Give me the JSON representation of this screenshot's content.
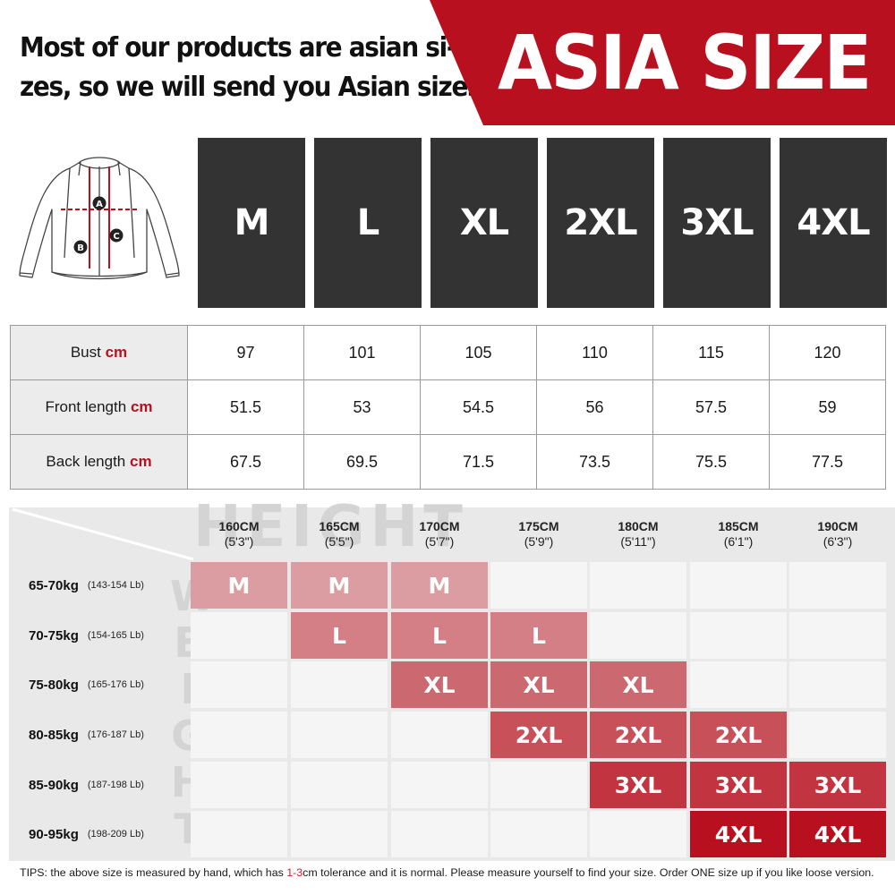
{
  "header": {
    "intro_lines": [
      "Most of our products are asian si-",
      "zes, so we will send you Asian sizes"
    ],
    "banner_title": "ASIA SIZE",
    "banner_color": "#b8101e"
  },
  "diagram": {
    "icon": "jersey-measurement-diagram",
    "markers": [
      "A",
      "B",
      "C"
    ]
  },
  "sizes": [
    "M",
    "L",
    "XL",
    "2XL",
    "3XL",
    "4XL"
  ],
  "measurements": {
    "unit": "cm",
    "rows": [
      {
        "label": "Bust",
        "values": [
          "97",
          "101",
          "105",
          "110",
          "115",
          "120"
        ]
      },
      {
        "label": "Front length",
        "values": [
          "51.5",
          "53",
          "54.5",
          "56",
          "57.5",
          "59"
        ]
      },
      {
        "label": "Back length",
        "values": [
          "67.5",
          "69.5",
          "71.5",
          "73.5",
          "75.5",
          "77.5"
        ]
      }
    ]
  },
  "fit_chart": {
    "watermark_height": "HEIGHT",
    "watermark_weight": "WEIGHT",
    "heights": [
      {
        "cm": "160CM",
        "ft": "(5'3\")"
      },
      {
        "cm": "165CM",
        "ft": "(5'5\")"
      },
      {
        "cm": "170CM",
        "ft": "(5'7\")"
      },
      {
        "cm": "175CM",
        "ft": "(5'9\")"
      },
      {
        "cm": "180CM",
        "ft": "(5'11\")"
      },
      {
        "cm": "185CM",
        "ft": "(6'1\")"
      },
      {
        "cm": "190CM",
        "ft": "(6'3\")"
      }
    ],
    "weights": [
      {
        "kg": "65-70kg",
        "lb": "(143-154 Lb)"
      },
      {
        "kg": "70-75kg",
        "lb": "(154-165 Lb)"
      },
      {
        "kg": "75-80kg",
        "lb": "(165-176 Lb)"
      },
      {
        "kg": "80-85kg",
        "lb": "(176-187 Lb)"
      },
      {
        "kg": "85-90kg",
        "lb": "(187-198 Lb)"
      },
      {
        "kg": "90-95kg",
        "lb": "(198-209 Lb)"
      }
    ],
    "grid": [
      [
        "M",
        "M",
        "M",
        "",
        "",
        "",
        ""
      ],
      [
        "",
        "L",
        "L",
        "L",
        "",
        "",
        ""
      ],
      [
        "",
        "",
        "XL",
        "XL",
        "XL",
        "",
        ""
      ],
      [
        "",
        "",
        "",
        "2XL",
        "2XL",
        "2XL",
        ""
      ],
      [
        "",
        "",
        "",
        "",
        "3XL",
        "3XL",
        "3XL"
      ],
      [
        "",
        "",
        "",
        "",
        "",
        "4XL",
        "4XL"
      ]
    ],
    "size_colors": {
      "M": "#dc9da2",
      "L": "#d47e86",
      "XL": "#cc6870",
      "2XL": "#c85058",
      "3XL": "#c23540",
      "4XL": "#b8101e"
    }
  },
  "tips": {
    "prefix": "TIPS:  the above size is measured by hand, which has ",
    "highlight": "1-3",
    "suffix": "cm tolerance and it is normal. Please measure yourself to find your size. Order ONE size up if you like loose version."
  }
}
